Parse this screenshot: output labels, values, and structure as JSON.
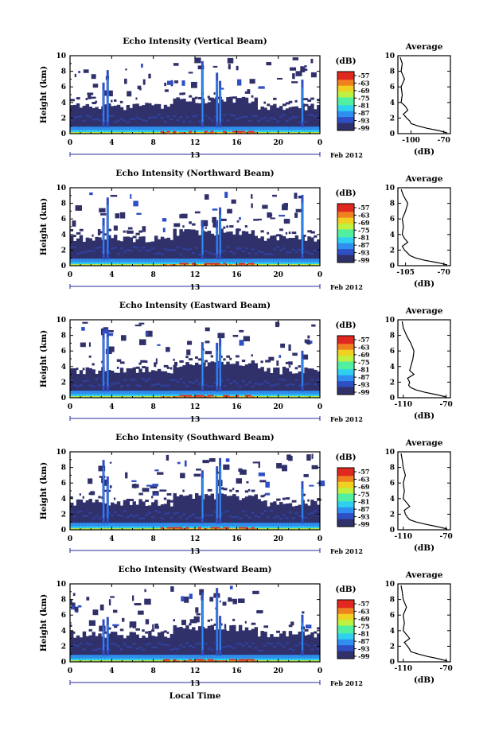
{
  "chart_data": {
    "type": "heatmap",
    "x_tick_labels": [
      "0",
      "4",
      "8",
      "12",
      "16",
      "20",
      "0"
    ],
    "y_tick_labels": [
      "0",
      "2",
      "4",
      "6",
      "8",
      "10"
    ],
    "ylim_km": [
      0,
      10
    ],
    "xlim_hours": [
      0,
      24
    ],
    "ylabel": "Height (km)",
    "xlabel": "Local Time",
    "date_day": "13",
    "date_label": "Feb 2012",
    "colorbar_title": "(dB)",
    "colorbar_ticks": [
      "-57",
      "-63",
      "-69",
      "-75",
      "-81",
      "-87",
      "-93",
      "-99"
    ],
    "colorscale": [
      "#30306a",
      "#2f4fc4",
      "#2f8ff0",
      "#2fd0f0",
      "#50f0a0",
      "#c0f040",
      "#f0d020",
      "#f08020",
      "#e02820"
    ],
    "average_label": "Average",
    "average_xlabel": "(dB)",
    "panels": [
      {
        "title": "Echo Intensity (Vertical Beam)",
        "average_ticks": [
          "-100",
          "-70"
        ],
        "average_xlim": [
          -112,
          -64
        ],
        "average_profile": {
          "height_km": [
            0.1,
            0.4,
            0.7,
            1.0,
            1.3,
            1.6,
            2.0,
            2.5,
            3.0,
            3.5,
            4.0,
            5.0,
            6.0,
            7.0,
            8.0,
            9.0,
            9.8
          ],
          "db": [
            -67,
            -75,
            -86,
            -94,
            -100,
            -101,
            -104,
            -107,
            -103,
            -105,
            -109,
            -108,
            -109,
            -106,
            -109,
            -108,
            -110
          ]
        }
      },
      {
        "title": "Echo Intensity (Northward Beam)",
        "average_ticks": [
          "-105",
          "-70"
        ],
        "average_xlim": [
          -112,
          -64
        ],
        "average_profile": {
          "height_km": [
            0.1,
            0.4,
            0.7,
            1.0,
            1.3,
            1.6,
            2.0,
            2.5,
            3.0,
            3.5,
            4.0,
            5.0,
            6.0,
            7.0,
            8.0,
            9.0,
            9.8
          ],
          "db": [
            -67,
            -76,
            -88,
            -96,
            -101,
            -103,
            -106,
            -108,
            -103,
            -106,
            -108,
            -107,
            -108,
            -105,
            -103,
            -107,
            -109
          ]
        }
      },
      {
        "title": "Echo Intensity (Eastward Beam)",
        "average_ticks": [
          "-110",
          "-70"
        ],
        "average_xlim": [
          -115,
          -66
        ],
        "average_profile": {
          "height_km": [
            0.1,
            0.4,
            0.7,
            1.0,
            1.3,
            1.6,
            2.0,
            2.5,
            3.0,
            3.5,
            4.0,
            5.0,
            6.0,
            7.0,
            8.0,
            9.0,
            9.8
          ],
          "db": [
            -70,
            -79,
            -90,
            -98,
            -103,
            -105,
            -104,
            -106,
            -100,
            -104,
            -103,
            -101,
            -100,
            -103,
            -107,
            -110,
            -111
          ]
        }
      },
      {
        "title": "Echo Intensity (Southward Beam)",
        "average_ticks": [
          "-110",
          "-70"
        ],
        "average_xlim": [
          -115,
          -66
        ],
        "average_profile": {
          "height_km": [
            0.1,
            0.4,
            0.7,
            1.0,
            1.3,
            1.6,
            2.0,
            2.5,
            3.0,
            3.5,
            4.0,
            5.0,
            6.0,
            7.0,
            8.0,
            9.0,
            9.8
          ],
          "db": [
            -69,
            -78,
            -89,
            -98,
            -104,
            -106,
            -108,
            -109,
            -104,
            -107,
            -110,
            -109,
            -110,
            -108,
            -110,
            -111,
            -112
          ]
        }
      },
      {
        "title": "Echo Intensity (Westward Beam)",
        "average_ticks": [
          "-110",
          "-70"
        ],
        "average_xlim": [
          -115,
          -66
        ],
        "average_profile": {
          "height_km": [
            0.1,
            0.4,
            0.7,
            1.0,
            1.3,
            1.6,
            2.0,
            2.5,
            3.0,
            3.5,
            4.0,
            5.0,
            6.0,
            7.0,
            8.0,
            9.0,
            9.8
          ],
          "db": [
            -69,
            -77,
            -88,
            -96,
            -103,
            -104,
            -106,
            -109,
            -104,
            -107,
            -110,
            -109,
            -110,
            -107,
            -110,
            -111,
            -112
          ]
        }
      }
    ]
  }
}
